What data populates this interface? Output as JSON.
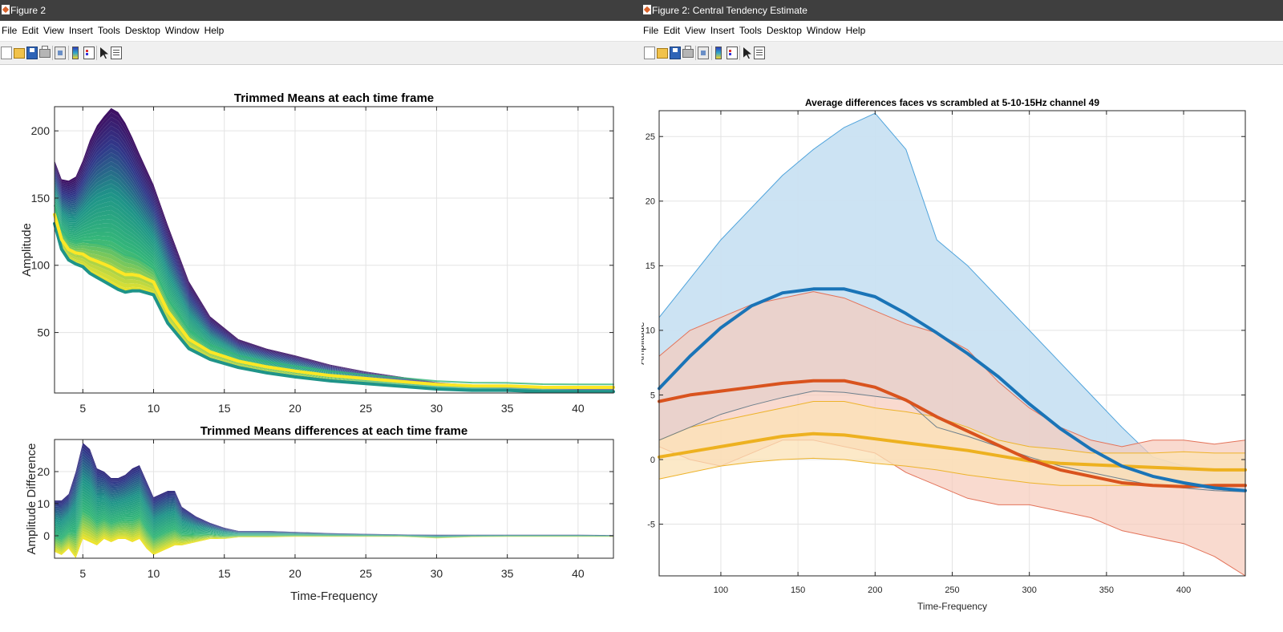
{
  "windows": {
    "left": {
      "title": "Figure 2",
      "menu": [
        "File",
        "Edit",
        "View",
        "Insert",
        "Tools",
        "Desktop",
        "Window",
        "Help"
      ],
      "toolbar_icons": [
        "new-figure-icon",
        "open-file-icon",
        "save-icon",
        "print-icon",
        "print-preview-icon",
        "colorbar-icon",
        "legend-icon",
        "pointer-arrow-icon",
        "property-inspector-icon"
      ]
    },
    "right": {
      "title": "Figure 2: Central Tendency Estimate",
      "menu": [
        "File",
        "Edit",
        "View",
        "Insert",
        "Tools",
        "Desktop",
        "Window",
        "Help"
      ],
      "toolbar_icons": [
        "new-figure-icon",
        "open-file-icon",
        "save-icon",
        "print-icon",
        "print-preview-icon",
        "colorbar-icon",
        "legend-icon",
        "pointer-arrow-icon",
        "property-inspector-icon"
      ]
    }
  },
  "colors": {
    "viridis_dark": "#440154",
    "viridis_blue": "#31398a",
    "viridis_teal": "#1f9489",
    "viridis_green": "#35b779",
    "viridis_yellow": "#fde725",
    "ci_blue_fill": "#c9e2f2",
    "ci_blue_edge": "#4ea3dc",
    "ci_red_fill": "#f6cbbb",
    "ci_red_edge": "#e3735a",
    "ci_yellow_fill": "#fbe2b6",
    "ci_yellow_edge": "#edb32a",
    "line_blue": "#1a74b7",
    "line_blue_tail": "#2d6384",
    "line_red": "#d9531e",
    "line_yellow": "#edb120",
    "grid": "#e3e3e3"
  },
  "chart_data": [
    {
      "type": "area",
      "title": "Trimmed Means at each time frame",
      "xlabel": "",
      "ylabel": "Amplitude",
      "xlim": [
        3,
        42.5
      ],
      "ylim": [
        5,
        218
      ],
      "xticks": [
        5,
        10,
        15,
        20,
        25,
        30,
        35,
        40
      ],
      "yticks": [
        50,
        100,
        150,
        200
      ],
      "grid": true,
      "x": [
        3,
        3.5,
        4,
        4.5,
        5,
        5.5,
        6,
        6.5,
        7,
        7.5,
        8,
        8.5,
        9,
        10,
        11,
        12.5,
        14,
        16,
        18,
        20,
        22.5,
        25,
        27.5,
        30,
        32.5,
        35,
        37.5,
        40,
        42.5
      ],
      "series": [
        {
          "name": "upper envelope",
          "values": [
            178,
            164,
            163,
            166,
            178,
            193,
            204,
            211,
            217,
            214,
            206,
            195,
            183,
            160,
            130,
            88,
            62,
            45,
            38,
            33,
            26,
            21,
            17,
            13,
            11,
            10,
            9,
            8,
            8
          ]
        },
        {
          "name": "lower envelope",
          "values": [
            131,
            112,
            104,
            101,
            99,
            94,
            91,
            88,
            85,
            82,
            80,
            81,
            81,
            78,
            57,
            38,
            30,
            24,
            20,
            17,
            14,
            12,
            10,
            8,
            7,
            7,
            6,
            6,
            6
          ]
        }
      ]
    },
    {
      "type": "area",
      "title": "Trimmed Means differences at each time frame",
      "xlabel": "Time-Frequency",
      "ylabel": "Amplitude Difference",
      "xlim": [
        3,
        42.5
      ],
      "ylim": [
        -7,
        30
      ],
      "xticks": [
        5,
        10,
        15,
        20,
        25,
        30,
        35,
        40
      ],
      "yticks": [
        0,
        10,
        20
      ],
      "grid": true,
      "x": [
        3,
        3.5,
        4,
        4.5,
        5,
        5.5,
        6,
        6.5,
        7,
        7.5,
        8,
        8.5,
        9,
        9.5,
        10,
        10.5,
        11,
        11.5,
        12,
        13,
        14,
        15,
        16,
        18,
        20,
        22.5,
        25,
        27.5,
        30,
        32.5,
        35,
        37.5,
        40,
        42.5
      ],
      "series": [
        {
          "name": "upper envelope",
          "values": [
            11,
            11,
            13,
            20,
            29,
            27,
            21,
            20,
            18,
            18,
            19,
            21,
            22,
            17,
            12,
            13,
            14,
            14,
            9,
            6,
            4,
            2.5,
            1.5,
            1.5,
            1.2,
            0.8,
            0.6,
            0.4,
            0.3,
            0.3,
            0.3,
            0.3,
            0.3,
            0.2
          ]
        },
        {
          "name": "lower envelope",
          "values": [
            -5,
            -6,
            -4,
            -7,
            -1,
            -2,
            -3,
            -1,
            -2,
            -1,
            -1,
            -2,
            -1,
            -4,
            -6,
            -5,
            -4,
            -3,
            -3,
            -2,
            -1,
            -1,
            -0.5,
            -0.5,
            -0.3,
            -0.3,
            -0.3,
            -0.3,
            -0.8,
            -0.4,
            -0.3,
            -0.3,
            -0.3,
            -0.3
          ]
        }
      ]
    },
    {
      "type": "line",
      "title": "Average differences faces vs scrambled at 5-10-15Hz channel 49",
      "xlabel": "Time-Frequency",
      "ylabel": "Amplitude",
      "xlim": [
        60,
        440
      ],
      "ylim": [
        -9,
        27
      ],
      "xticks": [
        100,
        150,
        200,
        250,
        300,
        350,
        400
      ],
      "yticks": [
        -5,
        0,
        5,
        10,
        15,
        20,
        25
      ],
      "grid": true,
      "x": [
        60,
        80,
        100,
        120,
        140,
        160,
        180,
        200,
        220,
        240,
        260,
        280,
        300,
        320,
        340,
        360,
        380,
        400,
        420,
        440
      ],
      "series": [
        {
          "name": "5Hz mean",
          "values": [
            5.5,
            8,
            10.2,
            11.9,
            12.9,
            13.2,
            13.2,
            12.6,
            11.3,
            9.8,
            8.2,
            6.4,
            4.3,
            2.4,
            0.8,
            -0.5,
            -1.3,
            -1.8,
            -2.2,
            -2.4
          ]
        },
        {
          "name": "5Hz CI upper",
          "values": [
            11,
            14,
            17,
            19.5,
            22,
            24,
            25.7,
            26.8,
            24,
            17,
            15,
            12.5,
            10,
            7.5,
            5,
            2.5,
            0.2,
            -0.5,
            -0.8,
            -0.8
          ]
        },
        {
          "name": "5Hz CI lower",
          "values": [
            1.5,
            2.5,
            3.5,
            4.2,
            4.8,
            5.3,
            5.2,
            4.9,
            4.6,
            2.5,
            1.8,
            1,
            0.2,
            -0.5,
            -1,
            -1.5,
            -2,
            -2.2,
            -2.4,
            -2.5
          ]
        },
        {
          "name": "10Hz mean",
          "values": [
            4.5,
            5,
            5.3,
            5.6,
            5.9,
            6.1,
            6.1,
            5.6,
            4.6,
            3.3,
            2.2,
            1.1,
            0,
            -0.8,
            -1.3,
            -1.8,
            -2,
            -2.1,
            -2,
            -2
          ]
        },
        {
          "name": "10Hz CI upper",
          "values": [
            8,
            10,
            11,
            12,
            12.5,
            13,
            12.5,
            11.5,
            10.5,
            9.8,
            8.5,
            6,
            4,
            2.5,
            1.5,
            1,
            1.5,
            1.5,
            1.2,
            1.5
          ]
        },
        {
          "name": "10Hz CI lower",
          "values": [
            1,
            0,
            -0.5,
            0.5,
            1.5,
            1.5,
            1,
            0.5,
            -1,
            -2,
            -3,
            -3.5,
            -3.5,
            -4,
            -4.5,
            -5.5,
            -6,
            -6.5,
            -7.5,
            -9
          ]
        },
        {
          "name": "15Hz mean",
          "values": [
            0.2,
            0.6,
            1,
            1.4,
            1.8,
            2,
            1.9,
            1.6,
            1.3,
            1,
            0.7,
            0.3,
            -0.1,
            -0.3,
            -0.4,
            -0.5,
            -0.6,
            -0.7,
            -0.8,
            -0.8
          ]
        },
        {
          "name": "15Hz CI upper",
          "values": [
            1.5,
            2.5,
            3,
            3.5,
            4,
            4.5,
            4.5,
            4,
            3.7,
            3.3,
            2.5,
            1.5,
            1,
            0.8,
            0.5,
            0.5,
            0.5,
            0.6,
            0.5,
            0.5
          ]
        },
        {
          "name": "15Hz CI lower",
          "values": [
            -1.5,
            -1,
            -0.5,
            -0.2,
            0,
            0.1,
            0,
            -0.3,
            -0.5,
            -0.8,
            -1.2,
            -1.5,
            -1.8,
            -2,
            -2,
            -2,
            -2,
            -2,
            -2,
            -2
          ]
        }
      ]
    }
  ]
}
